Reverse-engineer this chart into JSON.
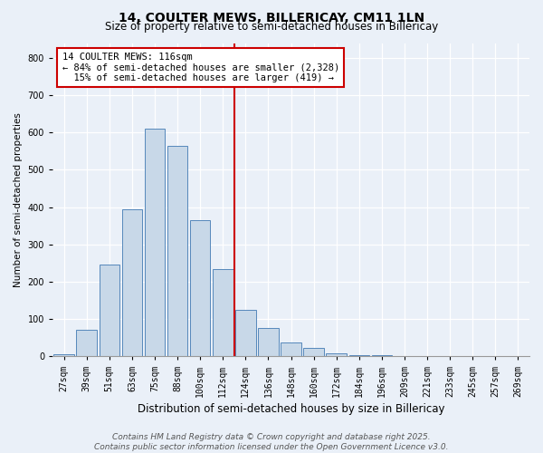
{
  "title1": "14, COULTER MEWS, BILLERICAY, CM11 1LN",
  "title2": "Size of property relative to semi-detached houses in Billericay",
  "xlabel": "Distribution of semi-detached houses by size in Billericay",
  "ylabel": "Number of semi-detached properties",
  "bar_labels": [
    "27sqm",
    "39sqm",
    "51sqm",
    "63sqm",
    "75sqm",
    "88sqm",
    "100sqm",
    "112sqm",
    "124sqm",
    "136sqm",
    "148sqm",
    "160sqm",
    "172sqm",
    "184sqm",
    "196sqm",
    "209sqm",
    "221sqm",
    "233sqm",
    "245sqm",
    "257sqm",
    "269sqm"
  ],
  "bar_values": [
    5,
    70,
    245,
    395,
    610,
    565,
    365,
    235,
    125,
    75,
    37,
    22,
    8,
    3,
    2,
    1,
    0,
    0,
    0,
    0,
    0
  ],
  "bar_color": "#c8d8e8",
  "bar_edge_color": "#5588bb",
  "vline_x_index": 7,
  "vline_color": "#cc0000",
  "annotation_line1": "14 COULTER MEWS: 116sqm",
  "annotation_line2": "← 84% of semi-detached houses are smaller (2,328)",
  "annotation_line3": "  15% of semi-detached houses are larger (419) →",
  "annotation_box_color": "#ffffff",
  "annotation_box_edge": "#cc0000",
  "ylim": [
    0,
    840
  ],
  "yticks": [
    0,
    100,
    200,
    300,
    400,
    500,
    600,
    700,
    800
  ],
  "background_color": "#eaf0f8",
  "footer_line1": "Contains HM Land Registry data © Crown copyright and database right 2025.",
  "footer_line2": "Contains public sector information licensed under the Open Government Licence v3.0.",
  "title1_fontsize": 10,
  "title2_fontsize": 8.5,
  "xlabel_fontsize": 8.5,
  "ylabel_fontsize": 7.5,
  "tick_fontsize": 7,
  "annotation_fontsize": 7.5,
  "footer_fontsize": 6.5
}
